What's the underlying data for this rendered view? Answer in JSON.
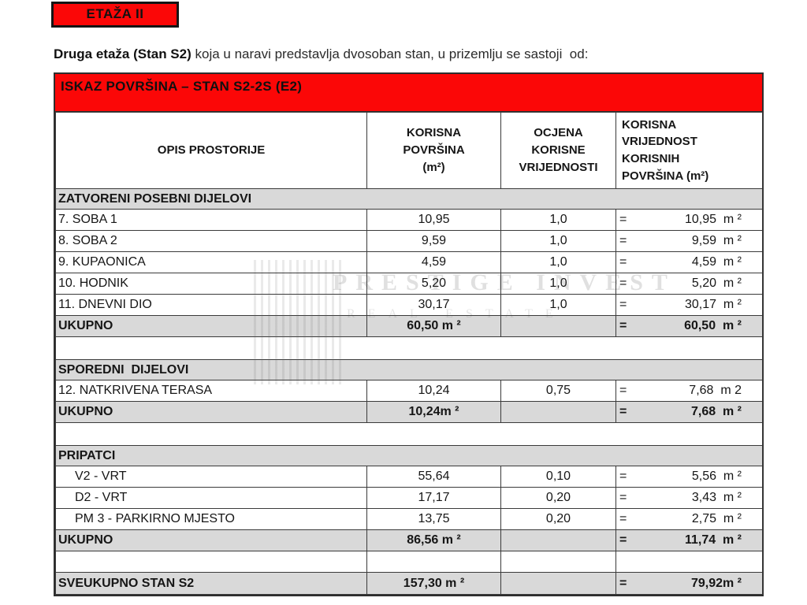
{
  "page": {
    "badge": "ETAŽA II",
    "intro_bold": "Druga etaža (Stan S2)",
    "intro_rest": " koja u naravi predstavlja dvosoban stan, u prizemlju se sastoji  od:",
    "banner": "ISKAZ POVRŠINA – STAN S2-2S (E2)"
  },
  "colors": {
    "accent_red": "#fb0707",
    "row_gray": "#d9d9d9",
    "border": "#3a3a3a",
    "text": "#161616"
  },
  "watermark": {
    "line1": "PRESTIGE INVEST",
    "line2": "REAL ESTATE"
  },
  "table": {
    "headers": {
      "opis": "OPIS PROSTORIJE",
      "korisna_povrsina": "KORISNA\nPOVRŠINA\n(m²)",
      "ocjena": "OCJENA\nKORISNE\nVRIJEDNOSTI",
      "korisna_vrijednost": "KORISNA\nVRIJEDNOST\nKORISNIH\nPOVRŠINA (m²)"
    },
    "rows": [
      {
        "type": "section",
        "label": "ZATVORENI POSEBNI DIJELOVI"
      },
      {
        "type": "data",
        "label": "7. SOBA 1",
        "area": "10,95",
        "ratio": "1,0",
        "eq": "=",
        "value": "10,95  m ²"
      },
      {
        "type": "data",
        "label": "8. SOBA 2",
        "area": "9,59",
        "ratio": "1,0",
        "eq": "=",
        "value": "9,59  m ²"
      },
      {
        "type": "data",
        "label": "9. KUPAONICA",
        "area": "4,59",
        "ratio": "1,0",
        "eq": "=",
        "value": "4,59  m ²"
      },
      {
        "type": "data",
        "label": "10. HODNIK",
        "area": "5,20",
        "ratio": "1,0",
        "eq": "=",
        "value": "5,20  m ²"
      },
      {
        "type": "data",
        "label": "11. DNEVNI DIO",
        "area": "30,17",
        "ratio": "1,0",
        "eq": "=",
        "value": "30,17  m ²"
      },
      {
        "type": "total",
        "label": "UKUPNO",
        "area": "60,50 m ²",
        "ratio": "",
        "eq": "=",
        "value": "60,50  m ²"
      },
      {
        "type": "spacer"
      },
      {
        "type": "section",
        "label": "SPOREDNI  DIJELOVI"
      },
      {
        "type": "data",
        "label": "12. NATKRIVENA TERASA",
        "area": "10,24",
        "ratio": "0,75",
        "eq": "=",
        "value": "7,68  m 2"
      },
      {
        "type": "total",
        "label": "UKUPNO",
        "area": "10,24m ²",
        "ratio": "",
        "eq": "=",
        "value": "7,68  m ²"
      },
      {
        "type": "spacer"
      },
      {
        "type": "section",
        "label": "PRIPATCI"
      },
      {
        "type": "data",
        "label": "V2 - VRT",
        "indent": true,
        "area": "55,64",
        "ratio": "0,10",
        "eq": "=",
        "value": "5,56  m ²"
      },
      {
        "type": "data",
        "label": "D2 - VRT",
        "indent": true,
        "area": "17,17",
        "ratio": "0,20",
        "eq": "=",
        "value": "3,43  m ²"
      },
      {
        "type": "data",
        "label": "PM 3 - PARKIRNO MJESTO",
        "indent": true,
        "area": "13,75",
        "ratio": "0,20",
        "eq": "=",
        "value": "2,75  m ²"
      },
      {
        "type": "total",
        "label": "UKUPNO",
        "area": "86,56 m ²",
        "ratio": "",
        "eq": "=",
        "value": "11,74  m ²"
      },
      {
        "type": "empty-cells"
      },
      {
        "type": "grand",
        "label": "SVEUKUPNO STAN S2",
        "area": "157,30 m ²",
        "ratio": "",
        "eq": "=",
        "value": "79,92m ²"
      }
    ]
  }
}
